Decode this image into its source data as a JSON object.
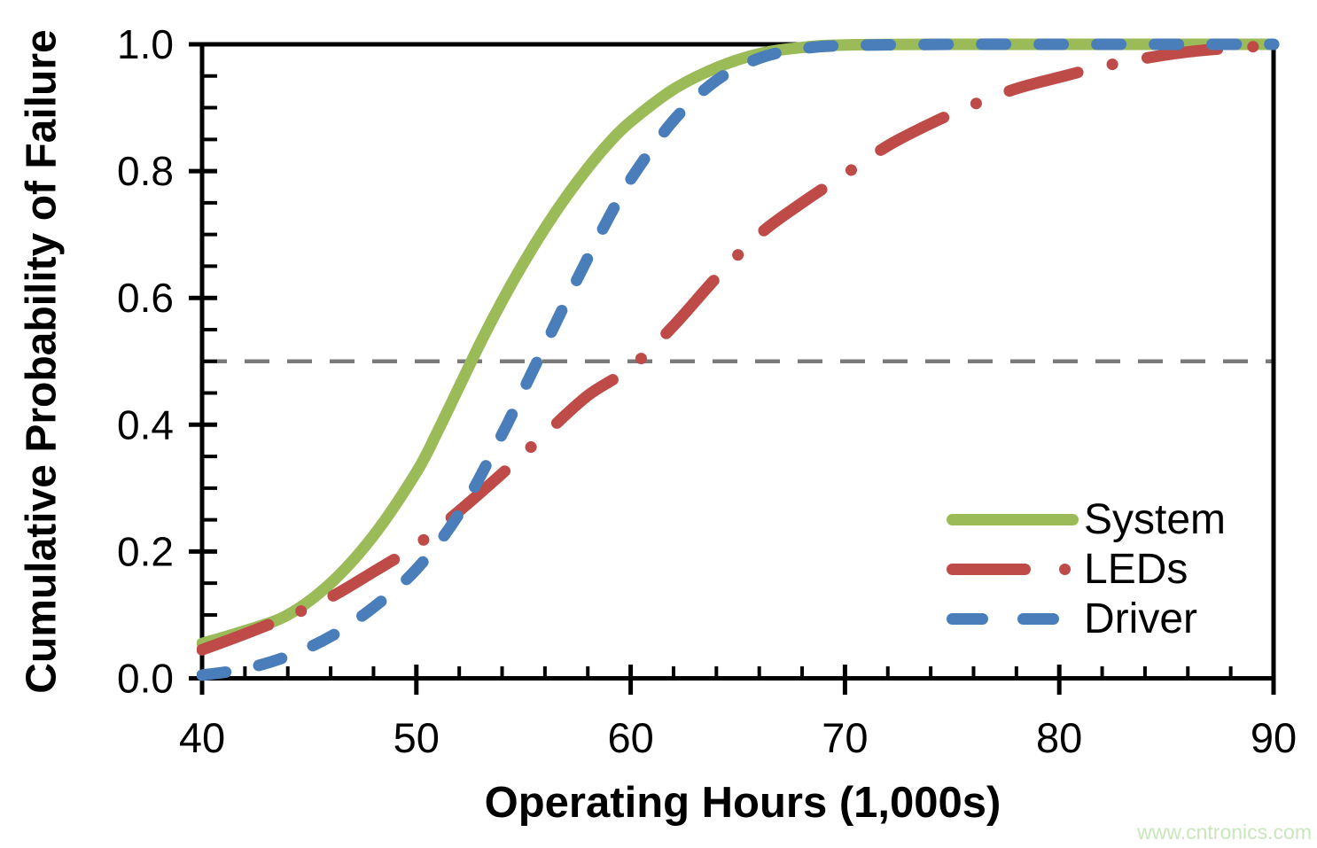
{
  "watermark": {
    "text": "www.cntronics.com",
    "color": "#c9e6bd"
  },
  "frame_color": "#000000",
  "chart_data": {
    "type": "line",
    "xlabel": "Operating Hours (1,000s)",
    "ylabel": "Cumulative Probability of Failure",
    "xlim": [
      40,
      90
    ],
    "ylim": [
      0,
      1
    ],
    "x_major_ticks": [
      40,
      50,
      60,
      70,
      80,
      90
    ],
    "x_tick_labels": [
      "40",
      "50",
      "60",
      "70",
      "80",
      "90"
    ],
    "x_minor_tick_step": 2,
    "y_major_ticks": [
      0,
      0.2,
      0.4,
      0.6,
      0.8,
      1
    ],
    "y_tick_labels": [
      "0.0",
      "0.2",
      "0.4",
      "0.6",
      "0.8",
      "1.0"
    ],
    "y_minor_tick_step": 0.05,
    "grid": "off",
    "frame": "box",
    "legend_position": "inside-right",
    "reference_lines": [
      {
        "axis": "y",
        "value": 0.5,
        "style": "dashed",
        "color": "#7a7a7a"
      }
    ],
    "series": [
      {
        "name": "System",
        "color": "#9bbb59",
        "line_style": "solid",
        "median_crossing_0.5": 52.5,
        "x": [
          40,
          42,
          44,
          46,
          48,
          50,
          51,
          52,
          53,
          54,
          55,
          56,
          57,
          58,
          59,
          60,
          62,
          64,
          66,
          68,
          70,
          75,
          80,
          85,
          90
        ],
        "y": [
          0.055,
          0.075,
          0.1,
          0.15,
          0.225,
          0.325,
          0.39,
          0.46,
          0.53,
          0.595,
          0.655,
          0.71,
          0.76,
          0.805,
          0.845,
          0.878,
          0.929,
          0.963,
          0.985,
          0.995,
          0.999,
          1.0,
          1.0,
          1.0,
          1.0
        ]
      },
      {
        "name": "LEDs",
        "color": "#be4b48",
        "line_style": "dash-dot",
        "median_crossing_0.5": 60.3,
        "x": [
          40,
          42,
          44,
          46,
          48,
          50,
          52,
          54,
          56,
          58,
          60,
          62,
          64,
          66,
          68,
          70,
          72,
          74,
          76,
          78,
          80,
          82,
          84,
          86,
          88,
          90
        ],
        "y": [
          0.045,
          0.07,
          0.097,
          0.128,
          0.168,
          0.21,
          0.264,
          0.323,
          0.385,
          0.446,
          0.49,
          0.556,
          0.632,
          0.7,
          0.75,
          0.795,
          0.84,
          0.875,
          0.905,
          0.93,
          0.948,
          0.965,
          0.978,
          0.988,
          0.994,
          0.998
        ]
      },
      {
        "name": "Driver",
        "color": "#4a7ebb",
        "line_style": "dash",
        "median_crossing_0.5": 55.6,
        "x": [
          40,
          42,
          44,
          46,
          48,
          50,
          52,
          54,
          55,
          56,
          57,
          58,
          59,
          60,
          62,
          64,
          66,
          68,
          70,
          75,
          80,
          85,
          90
        ],
        "y": [
          0.005,
          0.015,
          0.035,
          0.066,
          0.112,
          0.172,
          0.26,
          0.385,
          0.455,
          0.525,
          0.595,
          0.663,
          0.728,
          0.787,
          0.88,
          0.943,
          0.978,
          0.993,
          0.998,
          1.0,
          1.0,
          1.0,
          1.0
        ]
      }
    ]
  }
}
